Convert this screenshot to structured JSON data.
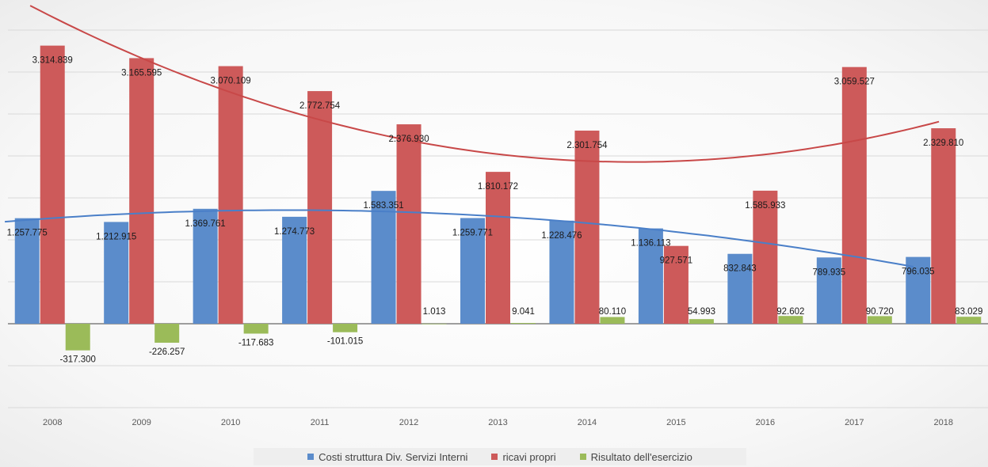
{
  "chart_data": {
    "type": "bar",
    "categories": [
      "2008",
      "2009",
      "2010",
      "2011",
      "2012",
      "2013",
      "2014",
      "2015",
      "2016",
      "2017",
      "2018"
    ],
    "series": [
      {
        "name": "Costi struttura Div. Servizi Interni",
        "color": "#5b8ccb",
        "values": [
          1257775,
          1212915,
          1369761,
          1274773,
          1583351,
          1259771,
          1228476,
          1136113,
          832843,
          789935,
          796035
        ],
        "labels": [
          "1.257.775",
          "1.212.915",
          "1.369.761",
          "1.274.773",
          "1.583.351",
          "1.259.771",
          "1.228.476",
          "1.136.113",
          "832.843",
          "789.935",
          "796.035"
        ]
      },
      {
        "name": "ricavi propri",
        "color": "#cd5a5a",
        "values": [
          3314839,
          3165595,
          3070109,
          2772754,
          2376930,
          1810172,
          2301754,
          927571,
          1585933,
          3059527,
          2329810
        ],
        "labels": [
          "3.314.839",
          "3.165.595",
          "3.070.109",
          "2.772.754",
          "2.376.930",
          "1.810.172",
          "2.301.754",
          "927.571",
          "1.585.933",
          "3.059.527",
          "2.329.810"
        ]
      },
      {
        "name": "Risultato dell'esercizio",
        "color": "#9bbb59",
        "values": [
          -317300,
          -226257,
          -117683,
          -101015,
          1013,
          9041,
          80110,
          54993,
          92602,
          90720,
          83029
        ],
        "labels": [
          "-317.300",
          "-226.257",
          "-117.683",
          "-101.015",
          "1.013",
          "9.041",
          "80.110",
          "54.993",
          "92.602",
          "90.720",
          "83.029"
        ]
      }
    ],
    "trendlines": [
      {
        "series": "Costi struttura Div. Servizi Interni",
        "type": "polynomial",
        "color": "#4a7fc8"
      },
      {
        "series": "ricavi propri",
        "type": "polynomial",
        "color": "#c84848"
      }
    ],
    "ylim": [
      -1000000,
      3500000
    ],
    "grid": true,
    "legend": "bottom"
  }
}
